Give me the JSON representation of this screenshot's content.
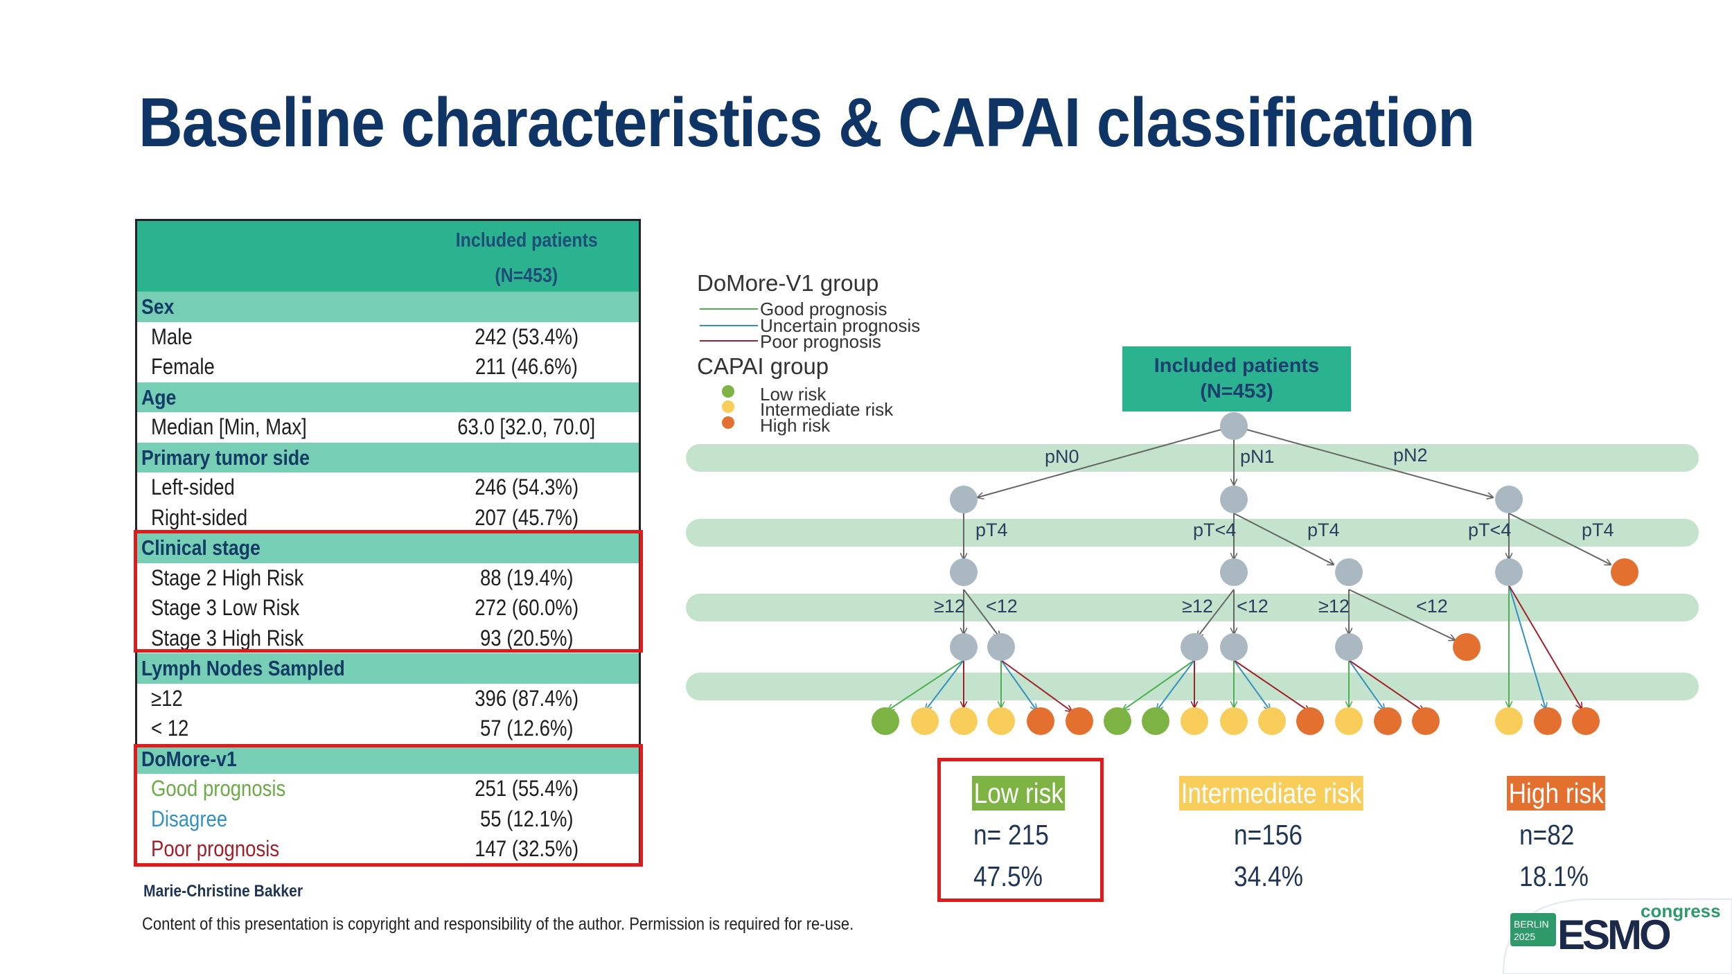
{
  "title": "Baseline characteristics & CAPAI classification",
  "table": {
    "header": [
      "Included patients",
      "(N=453)"
    ],
    "sections": [
      {
        "label": "Sex",
        "rows": [
          {
            "label": "Male",
            "value": "242 (53.4%)"
          },
          {
            "label": "Female",
            "value": "211 (46.6%)"
          }
        ]
      },
      {
        "label": "Age",
        "rows": [
          {
            "label": "Median [Min, Max]",
            "value": "63.0 [32.0, 70.0]"
          }
        ]
      },
      {
        "label": "Primary tumor side",
        "rows": [
          {
            "label": "Left-sided",
            "value": "246 (54.3%)"
          },
          {
            "label": "Right-sided",
            "value": "207 (45.7%)"
          }
        ]
      },
      {
        "label": "Clinical stage",
        "rows": [
          {
            "label": "Stage 2 High Risk",
            "value": "88 (19.4%)"
          },
          {
            "label": "Stage 3 Low Risk",
            "value": "272 (60.0%)"
          },
          {
            "label": "Stage 3 High Risk",
            "value": "93 (20.5%)"
          }
        ]
      },
      {
        "label": "Lymph Nodes Sampled",
        "rows": [
          {
            "label": "≥12",
            "value": "396 (87.4%)"
          },
          {
            "label": "< 12",
            "value": "57 (12.6%)"
          }
        ]
      },
      {
        "label": "DoMore-v1",
        "rows": [
          {
            "label": "Good prognosis",
            "value": "251 (55.4%)"
          },
          {
            "label": "Disagree",
            "value": "55 (12.1%)"
          },
          {
            "label": "Poor prognosis",
            "value": "147 (32.5%)"
          }
        ]
      }
    ]
  },
  "author": "Marie-Christine Bakker",
  "copyright": "Content of this presentation is copyright and responsibility of the author. Permission is required for re-use.",
  "legend": {
    "domore_title": "DoMore-V1 group",
    "domore_items": [
      "Good prognosis",
      "Uncertain prognosis",
      "Poor prognosis"
    ],
    "capai_title": "CAPAI group",
    "capai_items": [
      "Low risk",
      "Intermediate risk",
      "High risk"
    ]
  },
  "tree": {
    "root_label": [
      "Included patients",
      "(N=453)"
    ],
    "edge_labels": {
      "pn0": "pN0",
      "pn1": "pN1",
      "pn2": "pN2",
      "pt4_a": "pT4",
      "ptlt4_b": "pT<4",
      "pt4_b": "pT4",
      "ptlt4_c": "pT<4",
      "pt4_c": "pT4",
      "ge12_a": "≥12",
      "lt12_a": "<12",
      "ge12_b": "≥12",
      "lt12_b": "<12",
      "ge12_c": "≥12",
      "lt12_c": "<12"
    }
  },
  "results": {
    "low": {
      "label": "Low risk",
      "n": "n= 215",
      "pct": "47.5%"
    },
    "intermediate": {
      "label": "Intermediate risk",
      "n": "n=156",
      "pct": "34.4%"
    },
    "high": {
      "label": "High risk",
      "n": "n=82",
      "pct": "18.1%"
    }
  },
  "logo": {
    "city": "BERLIN",
    "year": "2025",
    "brand": "ESMO",
    "suffix": "congress"
  },
  "colors": {
    "title": "#0f3466",
    "header_green": "#2bb390",
    "section_green": "#76cfb5",
    "band": "#c4e3cc",
    "node_grey": "#aab8c2",
    "good": "#6aab46",
    "uncertain": "#3391c1",
    "poor": "#a21f2a",
    "low_risk": "#7cb342",
    "intermediate_risk": "#f9cd5a",
    "high_risk": "#e4702f",
    "highlight_red": "#e01b1b"
  }
}
